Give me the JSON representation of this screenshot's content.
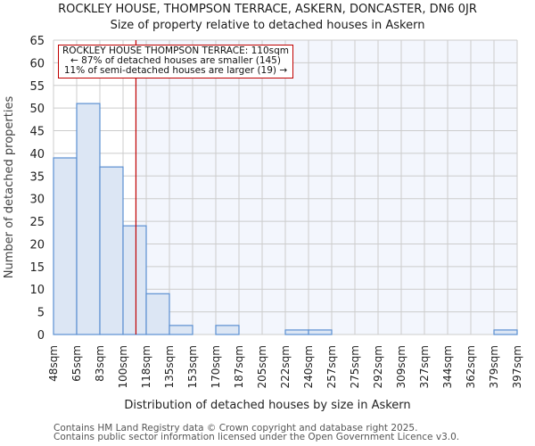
{
  "title": "ROCKLEY HOUSE, THOMPSON TERRACE, ASKERN, DONCASTER, DN6 0JR",
  "subtitle": "Size of property relative to detached houses in Askern",
  "annotation": {
    "line1": "ROCKLEY HOUSE THOMPSON TERRACE: 110sqm",
    "line2": "← 87% of detached houses are smaller (145)",
    "line3": "11% of semi-detached houses are larger (19) →"
  },
  "footer": {
    "line1": "Contains HM Land Registry data © Crown copyright and database right 2025.",
    "line2": "Contains public sector information licensed under the Open Government Licence v3.0."
  },
  "colors": {
    "bar_fill": "#dce6f4",
    "bar_edge": "#5b8fd1",
    "highlight_bg": "#f3f6fd",
    "marker_line": "#c00000",
    "grid": "#cccccc"
  },
  "chart_data": {
    "type": "bar",
    "title": "ROCKLEY HOUSE, THOMPSON TERRACE, ASKERN, DONCASTER, DN6 0JR",
    "subtitle": "Size of property relative to detached houses in Askern",
    "xlabel": "Distribution of detached houses by size in Askern",
    "ylabel": "Number of detached properties",
    "categories": [
      "48sqm",
      "65sqm",
      "83sqm",
      "100sqm",
      "118sqm",
      "135sqm",
      "153sqm",
      "170sqm",
      "187sqm",
      "205sqm",
      "222sqm",
      "240sqm",
      "257sqm",
      "275sqm",
      "292sqm",
      "309sqm",
      "327sqm",
      "344sqm",
      "362sqm",
      "379sqm",
      "397sqm"
    ],
    "values": [
      39,
      51,
      37,
      24,
      9,
      2,
      0,
      2,
      0,
      0,
      1,
      1,
      0,
      0,
      0,
      0,
      0,
      0,
      0,
      1
    ],
    "ylim": [
      0,
      65
    ],
    "yticks": [
      0,
      5,
      10,
      15,
      20,
      25,
      30,
      35,
      40,
      45,
      50,
      55,
      60,
      65
    ],
    "grid": true,
    "marker": {
      "value_sqm": 110,
      "label": "ROCKLEY HOUSE THOMPSON TERRACE: 110sqm"
    },
    "bins_note": "categories are bin edges; values are counts per bin"
  }
}
